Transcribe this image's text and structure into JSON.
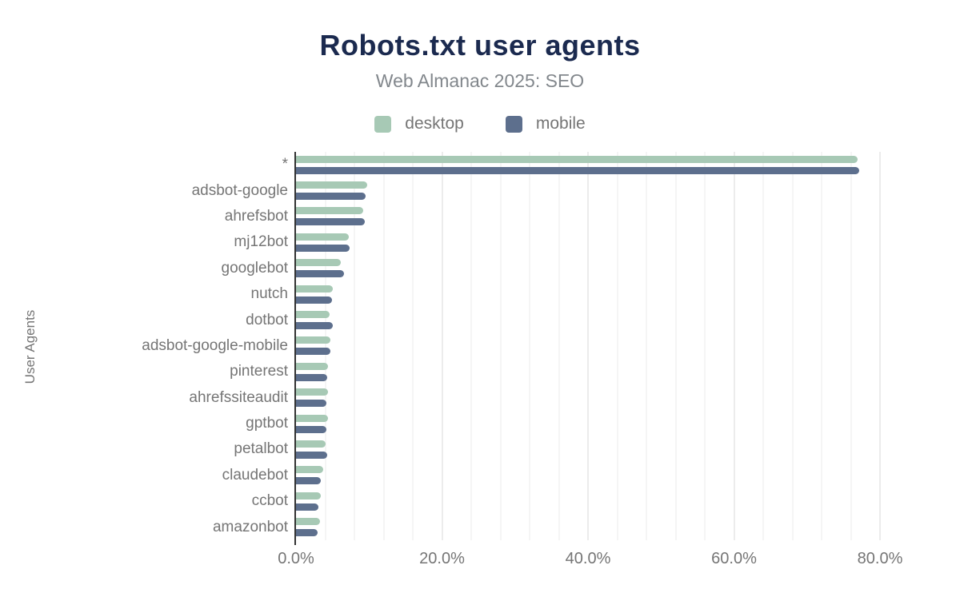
{
  "page": {
    "title": "Robots.txt user agents",
    "subtitle": "Web Almanac 2025: SEO"
  },
  "legend": {
    "position": "top",
    "items": [
      {
        "label": "desktop",
        "color": "#a7c9b5"
      },
      {
        "label": "mobile",
        "color": "#5d6f8d"
      }
    ]
  },
  "chart_data": {
    "type": "bar",
    "orientation": "horizontal",
    "title": "Robots.txt user agents",
    "subtitle": "Web Almanac 2025: SEO",
    "xlabel": "",
    "ylabel": "User Agents",
    "xlim": [
      0,
      80
    ],
    "x_tick_labels": [
      "0.0%",
      "20.0%",
      "40.0%",
      "60.0%",
      "80.0%"
    ],
    "x_tick_values": [
      0,
      20,
      40,
      60,
      80
    ],
    "minor_grid_step_percent": 4,
    "grid": "vertical-only",
    "legend_position": "top",
    "categories": [
      "*",
      "adsbot-google",
      "ahrefsbot",
      "mj12bot",
      "googlebot",
      "nutch",
      "dotbot",
      "adsbot-google-mobile",
      "pinterest",
      "ahrefssiteaudit",
      "gptbot",
      "petalbot",
      "claudebot",
      "ccbot",
      "amazonbot"
    ],
    "series": [
      {
        "name": "desktop",
        "color": "#a7c9b5",
        "unit": "%",
        "values": [
          76.9,
          9.7,
          9.2,
          7.2,
          6.1,
          5.0,
          4.6,
          4.7,
          4.4,
          4.4,
          4.4,
          4.0,
          3.7,
          3.4,
          3.3
        ]
      },
      {
        "name": "mobile",
        "color": "#5d6f8d",
        "unit": "%",
        "values": [
          77.2,
          9.5,
          9.4,
          7.3,
          6.6,
          4.9,
          5.0,
          4.7,
          4.3,
          4.2,
          4.2,
          4.3,
          3.4,
          3.1,
          3.0
        ]
      }
    ]
  },
  "colors": {
    "title": "#1b2a4f",
    "subtitle": "#82878c",
    "axis_text": "#757575",
    "axis_line": "#333333",
    "grid_minor": "#f5f5f5",
    "grid_major": "#ececec",
    "background": "#ffffff"
  }
}
